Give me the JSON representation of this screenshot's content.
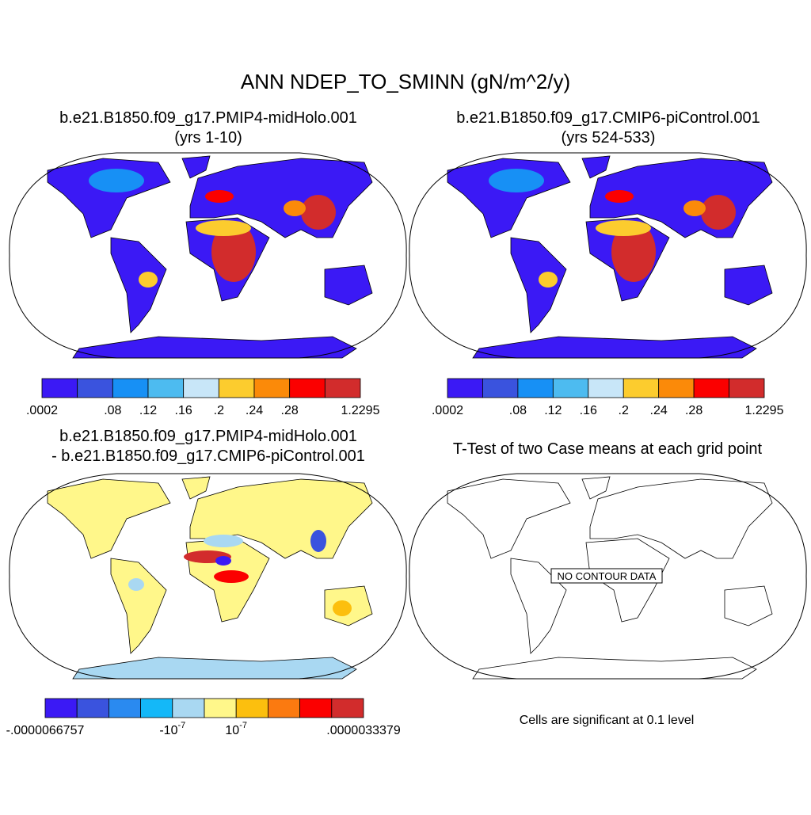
{
  "title": "ANN NDEP_TO_SMINN (gN/m^2/y)",
  "panels": [
    {
      "title": [
        "b.e21.B1850.f09_g17.PMIP4-midHolo.001",
        "(yrs 1-10)"
      ],
      "colorbar": {
        "colors": [
          "#3b19f5",
          "#3a53de",
          "#1790f5",
          "#4dbbf0",
          "#c8e6f8",
          "#fccc2e",
          "#fb8a09",
          "#fb0000",
          "#d22c2c"
        ],
        "labels": [
          ".0002",
          null,
          ".08",
          ".12",
          ".16",
          ".2",
          ".24",
          ".28",
          null,
          "1.2295"
        ]
      }
    },
    {
      "title": [
        "b.e21.B1850.f09_g17.CMIP6-piControl.001",
        "(yrs 524-533)"
      ],
      "colorbar": {
        "colors": [
          "#3b19f5",
          "#3a53de",
          "#1790f5",
          "#4dbbf0",
          "#c8e6f8",
          "#fccc2e",
          "#fb8a09",
          "#fb0000",
          "#d22c2c"
        ],
        "labels": [
          ".0002",
          null,
          ".08",
          ".12",
          ".16",
          ".2",
          ".24",
          ".28",
          null,
          "1.2295"
        ]
      }
    },
    {
      "title": [
        "b.e21.B1850.f09_g17.PMIP4-midHolo.001",
        "- b.e21.B1850.f09_g17.CMIP6-piControl.001"
      ],
      "colorbar": {
        "colors": [
          "#3b19f5",
          "#3a53de",
          "#2a8af0",
          "#14b8f8",
          "#a9d8f2",
          "#fff78a",
          "#fcbf0e",
          "#fb7a10",
          "#fb0000",
          "#d22c2c"
        ],
        "labels": [
          "-.0000066757",
          null,
          null,
          null,
          {
            "base": "-10",
            "exponent": "-7"
          },
          null,
          {
            "base": "10",
            "exponent": "-7"
          },
          null,
          null,
          null,
          ".0000033379"
        ]
      }
    },
    {
      "title": [
        "T-Test of two Case means at each grid point"
      ],
      "annotation": "NO CONTOUR DATA",
      "footnote": "Cells are significant at 0.1 level"
    }
  ]
}
